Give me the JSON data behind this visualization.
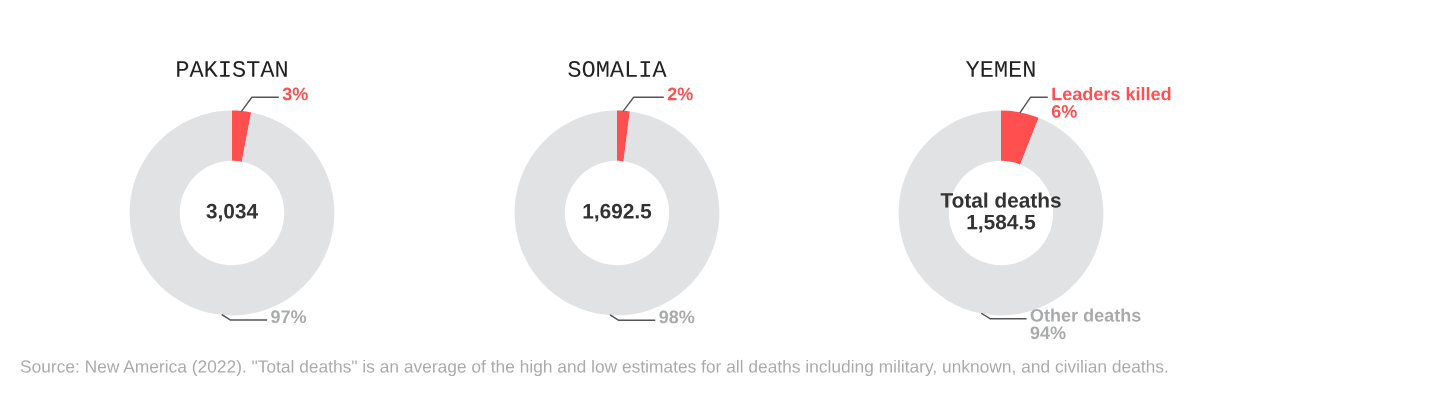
{
  "chart_data": [
    {
      "type": "donut",
      "title": "PAKISTAN",
      "categories": [
        null,
        null
      ],
      "values": [
        3,
        97
      ],
      "value_labels": [
        "3%",
        "97%"
      ],
      "colors": [
        "#ff4f4f",
        "#e1e2e4"
      ],
      "annotations": [
        "3,034"
      ]
    },
    {
      "type": "donut",
      "title": "SOMALIA",
      "categories": [
        null,
        null
      ],
      "values": [
        2,
        98
      ],
      "value_labels": [
        "2%",
        "98%"
      ],
      "colors": [
        "#ff4f4f",
        "#e1e2e4"
      ],
      "annotations": [
        "1,692.5"
      ]
    },
    {
      "type": "donut",
      "title": "YEMEN",
      "categories": [
        "Leaders killed",
        "Other deaths"
      ],
      "values": [
        6,
        94
      ],
      "value_labels": [
        "6%",
        "94%"
      ],
      "colors": [
        "#ff4f4f",
        "#e1e2e4"
      ],
      "annotations": [
        "Total deaths\n1,584.5"
      ]
    },
    {
      "type": "other",
      "annotations": [
        "Source: New America (2022). \"Total deaths\" is an average of the high and low estimates for all deaths including military, unknown, and civilian deaths."
      ]
    }
  ]
}
